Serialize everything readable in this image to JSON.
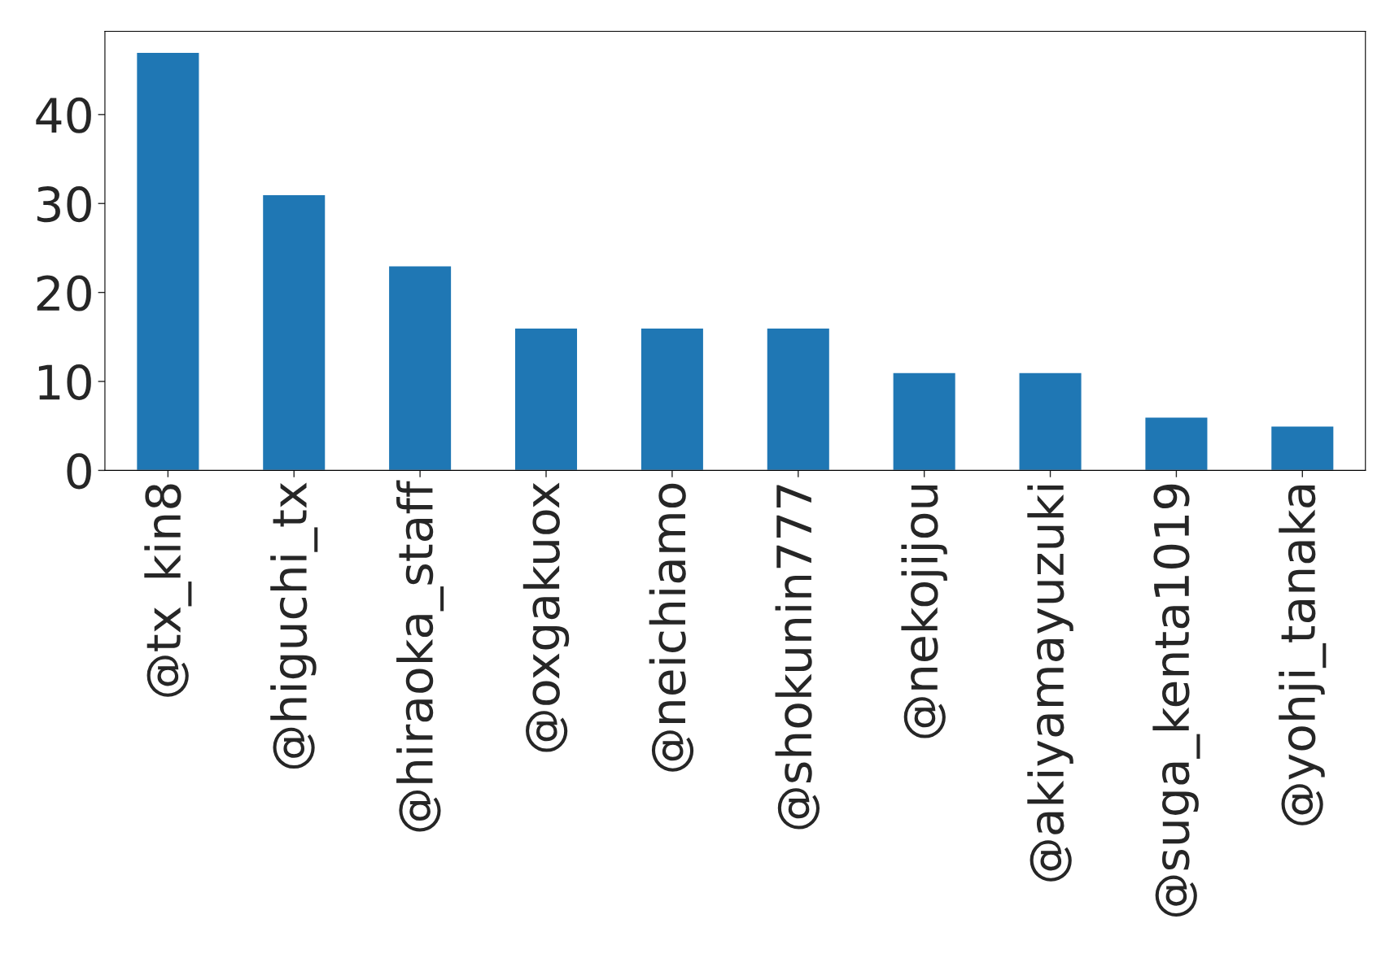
{
  "chart_data": {
    "type": "bar",
    "categories": [
      "@tx_kin8",
      "@higuchi_tx",
      "@hiraoka_staff",
      "@oxgakuox",
      "@neichiamo",
      "@shokunin777",
      "@nekojijou",
      "@akiyamayuzuki",
      "@suga_kenta1019",
      "@yohji_tanaka"
    ],
    "values": [
      47,
      31,
      23,
      16,
      16,
      16,
      11,
      11,
      6,
      5
    ],
    "color": "#1f77b4",
    "ylim": [
      0,
      49.35
    ],
    "yticks": [
      0,
      10,
      20,
      30,
      40
    ],
    "grid": false,
    "legend": false
  }
}
